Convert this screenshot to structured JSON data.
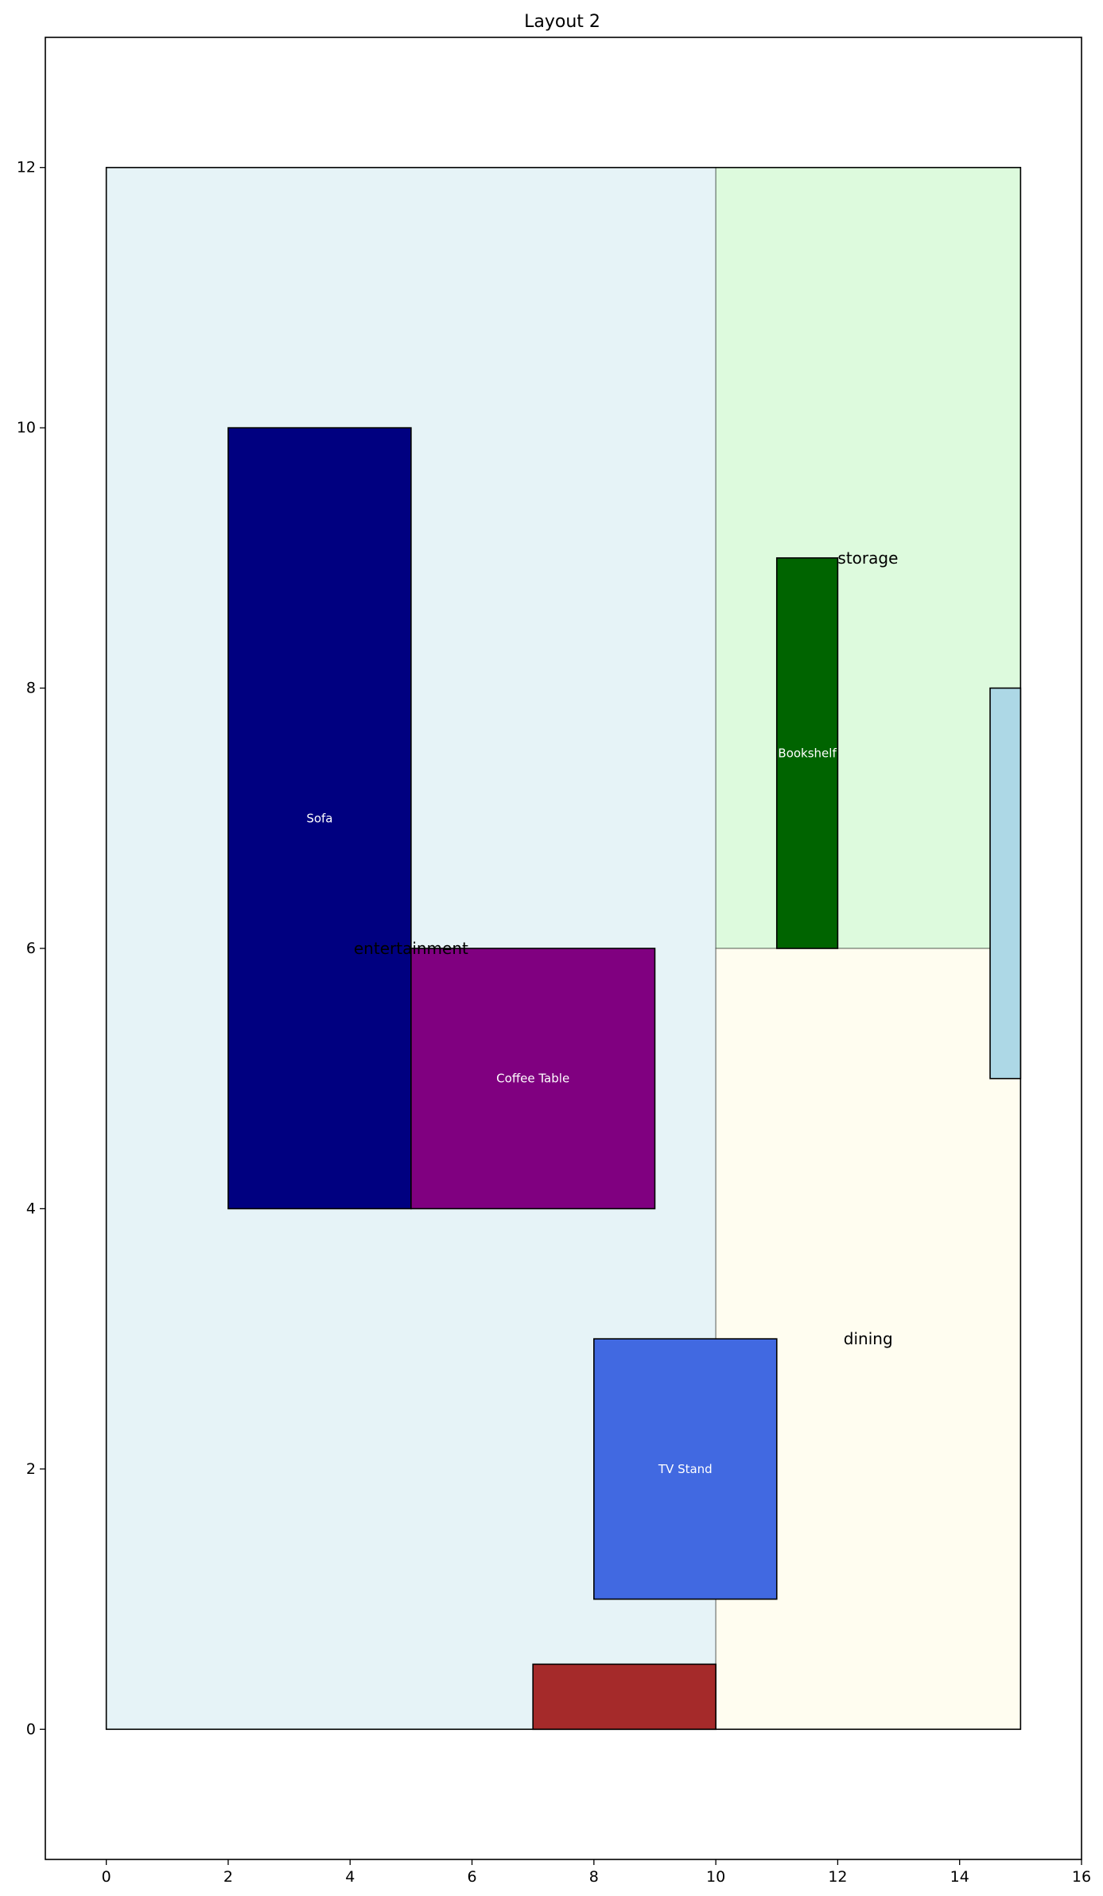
{
  "chart_data": {
    "type": "floor-plan",
    "title": "Layout 2",
    "xlim": [
      -1,
      16
    ],
    "ylim": [
      -1,
      13
    ],
    "xticks": [
      0,
      2,
      4,
      6,
      8,
      10,
      12,
      14,
      16
    ],
    "yticks": [
      0,
      2,
      4,
      6,
      8,
      10,
      12
    ],
    "grid": false,
    "room": {
      "x": 0,
      "y": 0,
      "w": 15,
      "h": 12,
      "fill": "#ffffff"
    },
    "zones": [
      {
        "id": "zone-entertainment",
        "x": 0,
        "y": 0,
        "w": 10,
        "h": 12,
        "color": "#add8e6"
      },
      {
        "id": "zone-storage",
        "x": 10,
        "y": 6,
        "w": 5,
        "h": 6,
        "color": "#90ee90"
      },
      {
        "id": "zone-dining",
        "x": 10,
        "y": 0,
        "w": 5,
        "h": 6,
        "color": "#fffacd"
      }
    ],
    "zone_labels": [
      {
        "text": "entertainment",
        "x": 5,
        "y": 6,
        "anchor": "middle"
      },
      {
        "text": "storage",
        "x": 12,
        "y": 9,
        "anchor": "start"
      },
      {
        "text": "dining",
        "x": 12.5,
        "y": 3,
        "anchor": "middle"
      }
    ],
    "furniture": [
      {
        "id": "sofa",
        "name": "Sofa",
        "x": 2,
        "y": 4,
        "w": 3,
        "h": 6,
        "color": "#000080"
      },
      {
        "id": "coffee-table",
        "name": "Coffee Table",
        "x": 5,
        "y": 4,
        "w": 4,
        "h": 2,
        "color": "#800080"
      },
      {
        "id": "tv-stand",
        "name": "TV Stand",
        "x": 8,
        "y": 1,
        "w": 3,
        "h": 2,
        "color": "#4169e1"
      },
      {
        "id": "bookshelf",
        "name": "Bookshelf",
        "x": 11,
        "y": 6,
        "w": 1,
        "h": 3,
        "color": "#006400"
      }
    ],
    "openings": [
      {
        "id": "door",
        "x": 7,
        "y": 0,
        "w": 3,
        "h": 0.5,
        "color": "#a52a2a"
      },
      {
        "id": "window",
        "x": 14.5,
        "y": 5,
        "w": 0.5,
        "h": 3,
        "color": "#add8e6"
      }
    ]
  }
}
